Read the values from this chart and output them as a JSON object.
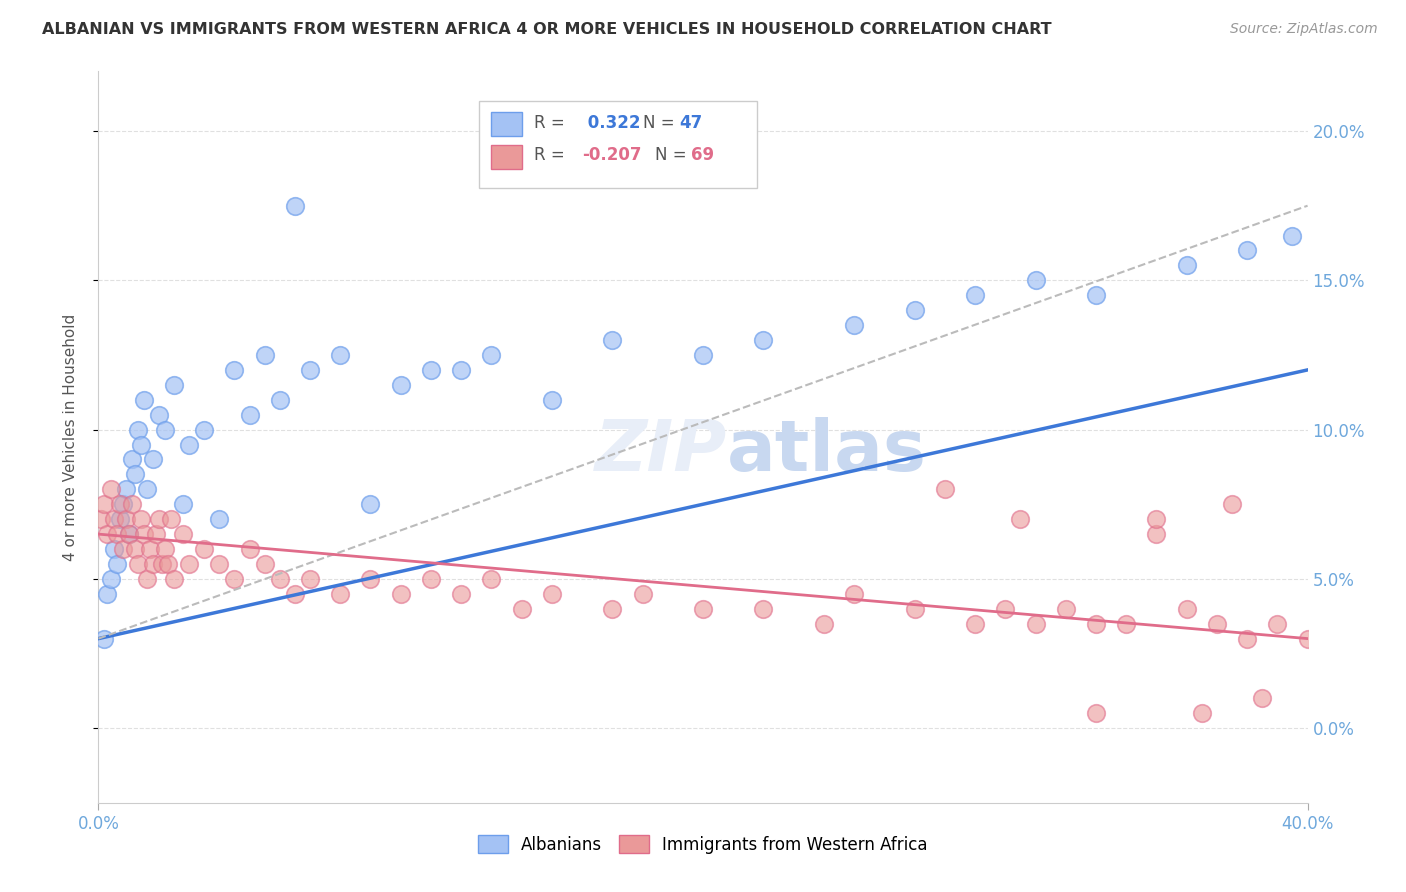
{
  "title": "ALBANIAN VS IMMIGRANTS FROM WESTERN AFRICA 4 OR MORE VEHICLES IN HOUSEHOLD CORRELATION CHART",
  "source": "Source: ZipAtlas.com",
  "ylabel": "4 or more Vehicles in Household",
  "xlim": [
    0.0,
    40.0
  ],
  "ylim": [
    -2.5,
    22.0
  ],
  "ytick_values": [
    0,
    5,
    10,
    15,
    20
  ],
  "ytick_labels": [
    "0.0%",
    "5.0%",
    "10.0%",
    "15.0%",
    "20.0%"
  ],
  "xtick_values": [
    0,
    40
  ],
  "xtick_labels": [
    "0.0%",
    "40.0%"
  ],
  "legend1_r": " 0.322",
  "legend1_n": "47",
  "legend2_r": "-0.207",
  "legend2_n": "69",
  "blue_scatter_color": "#a4c2f4",
  "blue_edge_color": "#6d9eeb",
  "pink_scatter_color": "#ea9999",
  "pink_edge_color": "#e06c8a",
  "blue_line_color": "#3d78d8",
  "pink_line_color": "#e06c8a",
  "gray_dash_color": "#bbbbbb",
  "tick_color": "#6fa8dc",
  "watermark_color": "#e8eef8",
  "grid_color": "#e0e0e0",
  "alb_x": [
    0.2,
    0.3,
    0.4,
    0.5,
    0.6,
    0.7,
    0.8,
    0.9,
    1.0,
    1.1,
    1.2,
    1.3,
    1.4,
    1.5,
    1.6,
    1.8,
    2.0,
    2.2,
    2.5,
    2.8,
    3.0,
    3.5,
    4.0,
    4.5,
    5.0,
    5.5,
    6.0,
    6.5,
    7.0,
    8.0,
    9.0,
    10.0,
    11.0,
    12.0,
    13.0,
    15.0,
    17.0,
    20.0,
    22.0,
    25.0,
    27.0,
    29.0,
    31.0,
    33.0,
    36.0,
    38.0,
    39.5
  ],
  "alb_y": [
    3.0,
    4.5,
    5.0,
    6.0,
    5.5,
    7.0,
    7.5,
    8.0,
    6.5,
    9.0,
    8.5,
    10.0,
    9.5,
    11.0,
    8.0,
    9.0,
    10.5,
    10.0,
    11.5,
    7.5,
    9.5,
    10.0,
    7.0,
    12.0,
    10.5,
    12.5,
    11.0,
    17.5,
    12.0,
    12.5,
    7.5,
    11.5,
    12.0,
    12.0,
    12.5,
    11.0,
    13.0,
    12.5,
    13.0,
    13.5,
    14.0,
    14.5,
    15.0,
    14.5,
    15.5,
    16.0,
    16.5
  ],
  "imm_x": [
    0.1,
    0.2,
    0.3,
    0.4,
    0.5,
    0.6,
    0.7,
    0.8,
    0.9,
    1.0,
    1.1,
    1.2,
    1.3,
    1.4,
    1.5,
    1.6,
    1.7,
    1.8,
    1.9,
    2.0,
    2.1,
    2.2,
    2.3,
    2.4,
    2.5,
    2.8,
    3.0,
    3.5,
    4.0,
    4.5,
    5.0,
    5.5,
    6.0,
    6.5,
    7.0,
    8.0,
    9.0,
    10.0,
    11.0,
    12.0,
    13.0,
    14.0,
    15.0,
    17.0,
    18.0,
    20.0,
    22.0,
    24.0,
    25.0,
    27.0,
    29.0,
    30.0,
    31.0,
    32.0,
    33.0,
    34.0,
    35.0,
    36.0,
    37.0,
    38.0,
    39.0,
    40.0,
    28.0,
    30.5,
    37.5,
    35.0,
    33.0,
    36.5,
    38.5
  ],
  "imm_y": [
    7.0,
    7.5,
    6.5,
    8.0,
    7.0,
    6.5,
    7.5,
    6.0,
    7.0,
    6.5,
    7.5,
    6.0,
    5.5,
    7.0,
    6.5,
    5.0,
    6.0,
    5.5,
    6.5,
    7.0,
    5.5,
    6.0,
    5.5,
    7.0,
    5.0,
    6.5,
    5.5,
    6.0,
    5.5,
    5.0,
    6.0,
    5.5,
    5.0,
    4.5,
    5.0,
    4.5,
    5.0,
    4.5,
    5.0,
    4.5,
    5.0,
    4.0,
    4.5,
    4.0,
    4.5,
    4.0,
    4.0,
    3.5,
    4.5,
    4.0,
    3.5,
    4.0,
    3.5,
    4.0,
    3.5,
    3.5,
    6.5,
    4.0,
    3.5,
    3.0,
    3.5,
    3.0,
    8.0,
    7.0,
    7.5,
    7.0,
    0.5,
    0.5,
    1.0
  ]
}
